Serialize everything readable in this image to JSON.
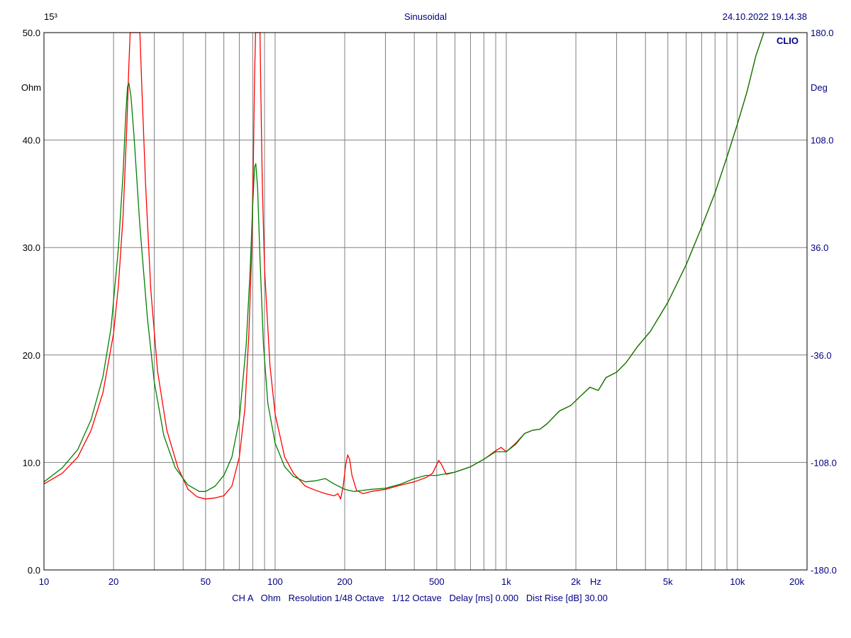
{
  "header": {
    "left": "15³",
    "title": "Sinusoidal",
    "timestamp": "24.10.2022 19.14.38"
  },
  "brand": "CLIO",
  "footer": "CH A   Ohm   Resolution 1/48 Octave   1/12 Octave   Delay [ms] 0.000   Dist Rise [dB] 30.00",
  "colors": {
    "background": "#ffffff",
    "grid": "#808080",
    "text_left": "#000000",
    "text_right": "#000080",
    "series_1": "#ff0000",
    "series_2": "#008000"
  },
  "chart_data": {
    "type": "line",
    "x_scale": "log",
    "xlim": [
      10,
      20000
    ],
    "ylim": [
      0,
      50
    ],
    "y2lim": [
      -180,
      180
    ],
    "ylabel": "Ohm",
    "y2label": "Deg",
    "xlabel": "Hz",
    "grid": true,
    "x_ticks": [
      {
        "value": 10,
        "label": "10"
      },
      {
        "value": 20,
        "label": "20"
      },
      {
        "value": 50,
        "label": "50"
      },
      {
        "value": 100,
        "label": "100"
      },
      {
        "value": 200,
        "label": "200"
      },
      {
        "value": 500,
        "label": "500"
      },
      {
        "value": 1000,
        "label": "1k"
      },
      {
        "value": 2000,
        "label": "2k"
      },
      {
        "value": 5000,
        "label": "5k"
      },
      {
        "value": 10000,
        "label": "10k"
      },
      {
        "value": 20000,
        "label": "20k"
      }
    ],
    "x_minor": [
      30,
      40,
      60,
      70,
      80,
      90,
      300,
      400,
      600,
      700,
      800,
      900,
      3000,
      4000,
      6000,
      7000,
      8000,
      9000
    ],
    "y_ticks": [
      {
        "value": 0,
        "label": "0.0"
      },
      {
        "value": 10,
        "label": "10.0"
      },
      {
        "value": 20,
        "label": "20.0"
      },
      {
        "value": 30,
        "label": "30.0"
      },
      {
        "value": 40,
        "label": "40.0"
      },
      {
        "value": 50,
        "label": "50.0"
      }
    ],
    "y2_ticks": [
      {
        "value": -180,
        "label": "-180.0"
      },
      {
        "value": -108,
        "label": "-108.0"
      },
      {
        "value": -36,
        "label": "-36.0"
      },
      {
        "value": 36,
        "label": "36.0"
      },
      {
        "value": 108,
        "label": "108.0"
      },
      {
        "value": 180,
        "label": "180.0"
      }
    ],
    "series": [
      {
        "color": "#ff0000",
        "points": [
          [
            10,
            8.0
          ],
          [
            12,
            9.0
          ],
          [
            14,
            10.5
          ],
          [
            16,
            13.0
          ],
          [
            18,
            16.5
          ],
          [
            20,
            22.0
          ],
          [
            21,
            26.5
          ],
          [
            22,
            33.0
          ],
          [
            22.8,
            41.0
          ],
          [
            23.3,
            47.0
          ],
          [
            23.6,
            50.0
          ],
          [
            26.0,
            50.0
          ],
          [
            26.5,
            45.0
          ],
          [
            27.5,
            36.0
          ],
          [
            29,
            26.0
          ],
          [
            31,
            18.5
          ],
          [
            34,
            13.0
          ],
          [
            38,
            9.5
          ],
          [
            42,
            7.5
          ],
          [
            46,
            6.8
          ],
          [
            50,
            6.6
          ],
          [
            55,
            6.7
          ],
          [
            60,
            6.9
          ],
          [
            65,
            7.8
          ],
          [
            70,
            10.5
          ],
          [
            74,
            15.0
          ],
          [
            77,
            22.0
          ],
          [
            79,
            29.0
          ],
          [
            80.5,
            38.0
          ],
          [
            81.5,
            46.0
          ],
          [
            82.3,
            50.0
          ],
          [
            86.0,
            50.0
          ],
          [
            86.8,
            44.0
          ],
          [
            88,
            36.0
          ],
          [
            90,
            28.0
          ],
          [
            95,
            19.0
          ],
          [
            100,
            14.5
          ],
          [
            110,
            10.5
          ],
          [
            120,
            9.0
          ],
          [
            135,
            7.8
          ],
          [
            150,
            7.4
          ],
          [
            165,
            7.1
          ],
          [
            180,
            6.9
          ],
          [
            187,
            7.1
          ],
          [
            192,
            6.6
          ],
          [
            197,
            7.8
          ],
          [
            202,
            9.8
          ],
          [
            206,
            10.7
          ],
          [
            210,
            10.3
          ],
          [
            215,
            8.8
          ],
          [
            225,
            7.4
          ],
          [
            240,
            7.1
          ],
          [
            260,
            7.3
          ],
          [
            300,
            7.5
          ],
          [
            350,
            7.9
          ],
          [
            400,
            8.2
          ],
          [
            450,
            8.6
          ],
          [
            480,
            9.0
          ],
          [
            500,
            9.8
          ],
          [
            510,
            10.2
          ],
          [
            525,
            9.8
          ],
          [
            550,
            8.9
          ],
          [
            600,
            9.1
          ],
          [
            700,
            9.6
          ],
          [
            800,
            10.3
          ],
          [
            900,
            11.1
          ],
          [
            950,
            11.4
          ],
          [
            1000,
            11.0
          ],
          [
            1100,
            11.8
          ],
          [
            1200,
            12.7
          ],
          [
            1300,
            13.0
          ],
          [
            1400,
            13.1
          ],
          [
            1500,
            13.6
          ],
          [
            1700,
            14.8
          ],
          [
            1900,
            15.3
          ],
          [
            2100,
            16.2
          ],
          [
            2300,
            17.0
          ],
          [
            2500,
            16.7
          ],
          [
            2700,
            17.9
          ],
          [
            3000,
            18.4
          ],
          [
            3300,
            19.3
          ],
          [
            3700,
            20.8
          ],
          [
            4200,
            22.2
          ],
          [
            5000,
            24.9
          ],
          [
            6000,
            28.4
          ],
          [
            7000,
            31.9
          ],
          [
            8000,
            35.1
          ],
          [
            9000,
            38.4
          ],
          [
            10000,
            41.5
          ],
          [
            11000,
            44.5
          ],
          [
            12000,
            47.8
          ],
          [
            13000,
            50.0
          ]
        ]
      },
      {
        "color": "#008000",
        "points": [
          [
            10,
            8.2
          ],
          [
            12,
            9.5
          ],
          [
            14,
            11.2
          ],
          [
            16,
            14.0
          ],
          [
            18,
            18.0
          ],
          [
            19.5,
            22.5
          ],
          [
            21,
            30.0
          ],
          [
            22,
            37.0
          ],
          [
            22.6,
            42.5
          ],
          [
            23.0,
            45.0
          ],
          [
            23.3,
            45.3
          ],
          [
            23.8,
            44.0
          ],
          [
            24.5,
            40.5
          ],
          [
            26,
            32.0
          ],
          [
            28,
            23.5
          ],
          [
            30,
            17.5
          ],
          [
            33,
            12.5
          ],
          [
            37,
            9.5
          ],
          [
            42,
            7.9
          ],
          [
            47,
            7.3
          ],
          [
            50,
            7.3
          ],
          [
            55,
            7.8
          ],
          [
            60,
            8.8
          ],
          [
            65,
            10.5
          ],
          [
            70,
            14.0
          ],
          [
            75,
            21.0
          ],
          [
            78,
            28.0
          ],
          [
            80,
            34.0
          ],
          [
            81.5,
            37.5
          ],
          [
            82.5,
            37.8
          ],
          [
            84,
            35.5
          ],
          [
            86,
            29.0
          ],
          [
            89,
            21.0
          ],
          [
            93,
            15.5
          ],
          [
            100,
            11.8
          ],
          [
            110,
            9.6
          ],
          [
            120,
            8.7
          ],
          [
            135,
            8.2
          ],
          [
            150,
            8.3
          ],
          [
            165,
            8.5
          ],
          [
            180,
            8.0
          ],
          [
            200,
            7.5
          ],
          [
            220,
            7.3
          ],
          [
            260,
            7.5
          ],
          [
            300,
            7.6
          ],
          [
            350,
            8.0
          ],
          [
            400,
            8.5
          ],
          [
            450,
            8.8
          ],
          [
            500,
            8.8
          ],
          [
            600,
            9.1
          ],
          [
            700,
            9.6
          ],
          [
            800,
            10.3
          ],
          [
            900,
            11.0
          ],
          [
            1000,
            11.0
          ],
          [
            1100,
            11.7
          ],
          [
            1200,
            12.7
          ],
          [
            1300,
            13.0
          ],
          [
            1400,
            13.1
          ],
          [
            1500,
            13.6
          ],
          [
            1700,
            14.8
          ],
          [
            1900,
            15.3
          ],
          [
            2100,
            16.2
          ],
          [
            2300,
            17.0
          ],
          [
            2500,
            16.7
          ],
          [
            2700,
            17.9
          ],
          [
            3000,
            18.4
          ],
          [
            3300,
            19.3
          ],
          [
            3700,
            20.8
          ],
          [
            4200,
            22.2
          ],
          [
            5000,
            24.9
          ],
          [
            6000,
            28.4
          ],
          [
            7000,
            31.9
          ],
          [
            8000,
            35.1
          ],
          [
            9000,
            38.4
          ],
          [
            10000,
            41.5
          ],
          [
            11000,
            44.5
          ],
          [
            12000,
            47.8
          ],
          [
            13000,
            50.0
          ]
        ]
      }
    ]
  }
}
